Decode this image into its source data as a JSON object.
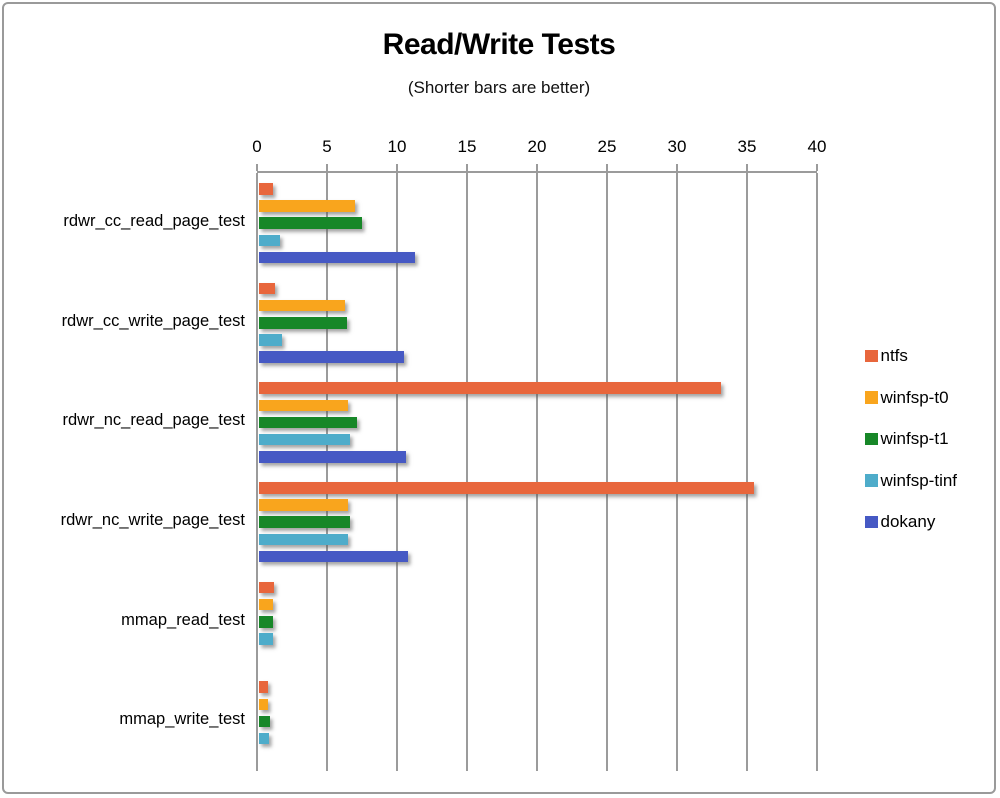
{
  "title": "Read/Write Tests",
  "subtitle": "(Shorter bars are better)",
  "colors": {
    "window_border": "#9a9a9a",
    "gridline": "#9b9b9b",
    "text": "#000000"
  },
  "chart_data": {
    "type": "bar",
    "orientation": "horizontal",
    "title": "Read/Write Tests",
    "subtitle": "(Shorter bars are better)",
    "xlabel": "",
    "ylabel": "",
    "xlim": [
      0,
      40
    ],
    "xticks": [
      0,
      5,
      10,
      15,
      20,
      25,
      30,
      35,
      40
    ],
    "grid": true,
    "axis_position": "top",
    "legend_position": "right",
    "categories": [
      "rdwr_cc_read_page_test",
      "rdwr_cc_write_page_test",
      "rdwr_nc_read_page_test",
      "rdwr_nc_write_page_test",
      "mmap_read_test",
      "mmap_write_test"
    ],
    "series": [
      {
        "name": "ntfs",
        "color": "#E8663C",
        "values": [
          1.0,
          1.2,
          33.0,
          35.4,
          1.1,
          0.7
        ]
      },
      {
        "name": "winfsp-t0",
        "color": "#F9A51D",
        "values": [
          6.9,
          6.2,
          6.4,
          6.4,
          1.0,
          0.7
        ]
      },
      {
        "name": "winfsp-t1",
        "color": "#178728",
        "values": [
          7.4,
          6.3,
          7.0,
          6.5,
          1.0,
          0.85
        ]
      },
      {
        "name": "winfsp-tinf",
        "color": "#4EACCA",
        "values": [
          1.5,
          1.7,
          6.5,
          6.4,
          1.0,
          0.75
        ]
      },
      {
        "name": "dokany",
        "color": "#4659C4",
        "values": [
          11.2,
          10.4,
          10.5,
          10.7,
          null,
          null
        ]
      }
    ]
  }
}
